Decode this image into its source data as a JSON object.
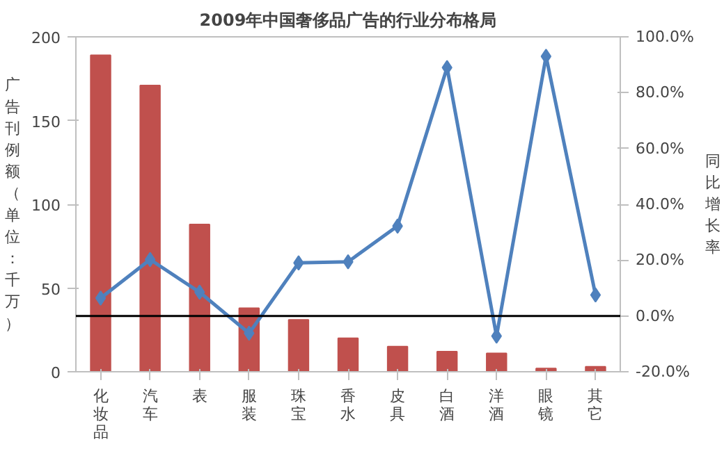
{
  "chart_data": {
    "type": "bar",
    "title": "2009年中国奢侈品广告的行业分布格局",
    "ylabel": "广告刊例额（单位：千万）",
    "y2label": "同比增长率",
    "categories": [
      "化妆品",
      "汽车",
      "表",
      "服装",
      "珠宝",
      "香水",
      "皮具",
      "白酒",
      "洋酒",
      "眼镜",
      "其它"
    ],
    "series": [
      {
        "color": "#c0504d",
        "values": [
          189,
          171,
          88,
          38,
          31,
          20,
          15,
          12,
          11,
          2,
          3
        ]
      },
      {
        "type": "line",
        "axis": "y2",
        "color": "#4f81bd",
        "marker": "diamond",
        "values": [
          6.4,
          20.2,
          8.5,
          -6.2,
          19,
          19.4,
          32.2,
          89,
          -7.2,
          93,
          7.5
        ]
      }
    ],
    "ylim": [
      0,
      200
    ],
    "yticks": [
      0,
      50,
      100,
      150,
      200
    ],
    "y2lim": [
      -20,
      100
    ],
    "y2ticks": [
      {
        "value": -20,
        "label": "-20.0%"
      },
      {
        "value": 0,
        "label": "0.0%"
      },
      {
        "value": 20,
        "label": "20.0%"
      },
      {
        "value": 40,
        "label": "40.0%"
      },
      {
        "value": 60,
        "label": "60.0%"
      },
      {
        "value": 80,
        "label": "80.0%"
      },
      {
        "value": 100,
        "label": "100.0%"
      }
    ],
    "ref_lines": [
      {
        "axis": "y2",
        "value": 0,
        "color": "#000000"
      }
    ],
    "grid": false
  }
}
